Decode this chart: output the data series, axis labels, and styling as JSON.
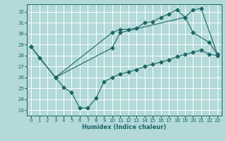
{
  "bg_color": "#b3d9d9",
  "grid_color": "#ffffff",
  "line_color": "#1a6666",
  "xlabel": "Humidex (Indice chaleur)",
  "xlim": [
    -0.5,
    23.5
  ],
  "ylim": [
    22.5,
    32.7
  ],
  "yticks": [
    23,
    24,
    25,
    26,
    27,
    28,
    29,
    30,
    31,
    32
  ],
  "xticks": [
    0,
    1,
    2,
    3,
    4,
    5,
    6,
    7,
    8,
    9,
    10,
    11,
    12,
    13,
    14,
    15,
    16,
    17,
    18,
    19,
    20,
    21,
    22,
    23
  ],
  "line1_x": [
    0,
    1,
    3,
    10,
    11,
    12,
    13,
    14,
    15,
    16,
    17,
    18,
    19,
    20,
    22,
    23
  ],
  "line1_y": [
    28.8,
    27.8,
    26.0,
    30.1,
    30.4,
    30.4,
    30.5,
    31.0,
    31.1,
    31.5,
    31.8,
    32.2,
    31.5,
    30.1,
    29.2,
    28.1
  ],
  "line2_x": [
    0,
    3,
    10,
    11,
    19,
    20,
    21,
    23
  ],
  "line2_y": [
    28.8,
    26.0,
    28.7,
    30.1,
    31.5,
    32.2,
    32.3,
    28.1
  ],
  "line3_x": [
    3,
    4,
    5,
    6,
    7,
    8,
    9,
    10,
    11,
    12,
    13,
    14,
    15,
    16,
    17,
    18,
    19,
    20,
    21,
    22,
    23
  ],
  "line3_y": [
    26.0,
    25.1,
    24.6,
    23.2,
    23.2,
    24.1,
    25.6,
    26.0,
    26.3,
    26.5,
    26.7,
    27.0,
    27.2,
    27.4,
    27.6,
    27.9,
    28.1,
    28.3,
    28.5,
    28.1,
    28.0
  ]
}
